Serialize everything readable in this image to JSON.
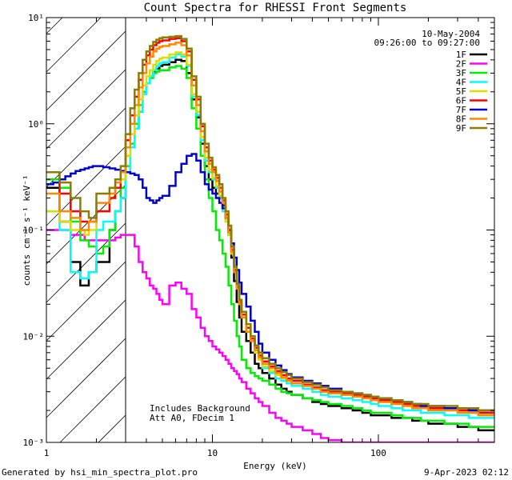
{
  "chart_data": {
    "type": "line",
    "title": "Count Spectra for RHESSI Front Segments",
    "xlabel": "Energy (keV)",
    "ylabel": "counts cm⁻² s⁻¹ keV⁻¹",
    "xscale": "log",
    "yscale": "log",
    "xlim": [
      1,
      500
    ],
    "ylim": [
      0.001,
      10
    ],
    "x_ticks": [
      {
        "value": 1,
        "label": "1"
      },
      {
        "value": 10,
        "label": "10"
      },
      {
        "value": 100,
        "label": "100"
      }
    ],
    "y_ticks": [
      {
        "value": 10,
        "label": "10¹"
      },
      {
        "value": 1,
        "label": "10⁰"
      },
      {
        "value": 0.1,
        "label": "10⁻¹"
      },
      {
        "value": 0.01,
        "label": "10⁻²"
      },
      {
        "value": 0.001,
        "label": "10⁻³"
      }
    ],
    "excluded_region": {
      "from": 1,
      "to": 3
    },
    "date": "10-May-2004",
    "time_range": "09:26:00 to 09:27:00",
    "annotations": [
      "Includes Background",
      "Att A0, FDecim 1"
    ],
    "legend_position": "top-right",
    "x": [
      1.0,
      1.1,
      1.2,
      1.3,
      1.4,
      1.5,
      1.6,
      1.7,
      1.8,
      1.9,
      2.0,
      2.2,
      2.4,
      2.6,
      2.8,
      3.0,
      3.2,
      3.4,
      3.6,
      3.8,
      4.0,
      4.2,
      4.4,
      4.6,
      4.8,
      5.0,
      5.5,
      6.0,
      6.5,
      7.0,
      7.5,
      8.0,
      8.5,
      9.0,
      9.5,
      10.0,
      10.5,
      11.0,
      11.5,
      12.0,
      12.5,
      13.0,
      13.5,
      14.0,
      14.5,
      15.0,
      16.0,
      17.0,
      18.0,
      19.0,
      20.0,
      22.0,
      24.0,
      26.0,
      28.0,
      30.0,
      35.0,
      40.0,
      45.0,
      50.0,
      60.0,
      70.0,
      80.0,
      90.0,
      100.0,
      120.0,
      140.0,
      160.0,
      180.0,
      200.0,
      250.0,
      300.0,
      350.0,
      400.0
    ],
    "series": [
      {
        "name": "1F",
        "color": "#000000",
        "values": [
          0.25,
          0.25,
          0.12,
          0.12,
          0.05,
          0.05,
          0.03,
          0.03,
          0.04,
          0.04,
          0.05,
          0.05,
          0.1,
          0.15,
          0.2,
          0.35,
          0.6,
          0.9,
          1.3,
          1.9,
          2.4,
          2.8,
          3.1,
          3.3,
          3.5,
          3.6,
          3.8,
          4.0,
          3.9,
          3.0,
          1.7,
          1.15,
          0.65,
          0.4,
          0.3,
          0.25,
          0.22,
          0.2,
          0.17,
          0.13,
          0.09,
          0.055,
          0.033,
          0.021,
          0.015,
          0.011,
          0.009,
          0.007,
          0.0055,
          0.005,
          0.0045,
          0.004,
          0.0035,
          0.0032,
          0.003,
          0.0028,
          0.0026,
          0.0024,
          0.0023,
          0.0022,
          0.0021,
          0.002,
          0.0019,
          0.0018,
          0.0018,
          0.0017,
          0.0017,
          0.0016,
          0.0016,
          0.0015,
          0.0015,
          0.0014,
          0.0014,
          0.0013
        ]
      },
      {
        "name": "2F",
        "color": "#ff00ff",
        "values": [
          0.1,
          0.1,
          0.1,
          0.1,
          0.09,
          0.09,
          0.09,
          0.08,
          0.08,
          0.08,
          0.08,
          0.08,
          0.08,
          0.085,
          0.09,
          0.09,
          0.09,
          0.07,
          0.05,
          0.04,
          0.035,
          0.03,
          0.028,
          0.025,
          0.022,
          0.02,
          0.03,
          0.032,
          0.028,
          0.025,
          0.018,
          0.015,
          0.012,
          0.01,
          0.009,
          0.008,
          0.0075,
          0.007,
          0.0065,
          0.006,
          0.0055,
          0.005,
          0.0047,
          0.0044,
          0.004,
          0.0037,
          0.0032,
          0.0029,
          0.0026,
          0.0024,
          0.0022,
          0.0019,
          0.0017,
          0.0016,
          0.0015,
          0.0014,
          0.0013,
          0.0012,
          0.0011,
          0.00105,
          0.001,
          0.001,
          0.001,
          0.001,
          0.001,
          0.001,
          0.001,
          0.001,
          0.001,
          0.001,
          0.001,
          0.001,
          0.001,
          0.001
        ]
      },
      {
        "name": "3F",
        "color": "#00ee00",
        "values": [
          0.3,
          0.3,
          0.25,
          0.25,
          0.12,
          0.12,
          0.08,
          0.08,
          0.07,
          0.07,
          0.06,
          0.07,
          0.1,
          0.15,
          0.25,
          0.4,
          0.65,
          1.0,
          1.5,
          2.0,
          2.4,
          2.7,
          3.0,
          3.1,
          3.2,
          3.2,
          3.4,
          3.5,
          3.3,
          2.7,
          1.4,
          0.9,
          0.5,
          0.3,
          0.2,
          0.15,
          0.1,
          0.08,
          0.06,
          0.045,
          0.03,
          0.02,
          0.014,
          0.01,
          0.008,
          0.006,
          0.005,
          0.0045,
          0.0042,
          0.004,
          0.0038,
          0.0035,
          0.0032,
          0.003,
          0.0029,
          0.0028,
          0.0026,
          0.0025,
          0.0024,
          0.0023,
          0.0022,
          0.0021,
          0.002,
          0.0019,
          0.0019,
          0.0018,
          0.0017,
          0.0017,
          0.0016,
          0.0016,
          0.0015,
          0.0015,
          0.0014,
          0.0014
        ]
      },
      {
        "name": "4F",
        "color": "#00ffff",
        "values": [
          0.15,
          0.15,
          0.1,
          0.1,
          0.04,
          0.04,
          0.035,
          0.035,
          0.04,
          0.04,
          0.1,
          0.12,
          0.12,
          0.15,
          0.2,
          0.35,
          0.6,
          0.9,
          1.3,
          1.9,
          2.4,
          2.8,
          3.2,
          3.5,
          3.7,
          3.8,
          4.2,
          4.5,
          4.3,
          3.5,
          1.8,
          1.2,
          0.7,
          0.45,
          0.35,
          0.3,
          0.25,
          0.2,
          0.15,
          0.12,
          0.09,
          0.06,
          0.04,
          0.03,
          0.022,
          0.017,
          0.012,
          0.009,
          0.007,
          0.006,
          0.005,
          0.0045,
          0.004,
          0.0038,
          0.0036,
          0.0034,
          0.0032,
          0.003,
          0.0028,
          0.0027,
          0.0026,
          0.0025,
          0.0024,
          0.0023,
          0.0022,
          0.0021,
          0.002,
          0.002,
          0.0019,
          0.0019,
          0.0018,
          0.0018,
          0.0017,
          0.0017
        ]
      },
      {
        "name": "5F",
        "color": "#dddd00",
        "values": [
          0.15,
          0.15,
          0.12,
          0.12,
          0.1,
          0.1,
          0.1,
          0.09,
          0.1,
          0.1,
          0.15,
          0.15,
          0.2,
          0.25,
          0.3,
          0.5,
          0.8,
          1.2,
          1.7,
          2.3,
          2.8,
          3.2,
          3.6,
          3.9,
          4.1,
          4.2,
          4.5,
          4.7,
          4.5,
          3.6,
          1.9,
          1.3,
          0.75,
          0.48,
          0.37,
          0.31,
          0.26,
          0.21,
          0.16,
          0.12,
          0.09,
          0.06,
          0.04,
          0.028,
          0.02,
          0.015,
          0.011,
          0.009,
          0.007,
          0.006,
          0.0052,
          0.0047,
          0.0043,
          0.004,
          0.0038,
          0.0036,
          0.0034,
          0.0032,
          0.003,
          0.0029,
          0.0028,
          0.0027,
          0.0026,
          0.0025,
          0.0024,
          0.0023,
          0.0022,
          0.0021,
          0.0021,
          0.002,
          0.002,
          0.0019,
          0.0019,
          0.0018
        ]
      },
      {
        "name": "6F",
        "color": "#ff0000",
        "values": [
          0.35,
          0.35,
          0.22,
          0.22,
          0.15,
          0.15,
          0.12,
          0.12,
          0.12,
          0.12,
          0.15,
          0.15,
          0.2,
          0.25,
          0.35,
          0.7,
          1.2,
          1.8,
          2.6,
          3.6,
          4.4,
          5.0,
          5.5,
          5.8,
          6.0,
          6.1,
          6.3,
          6.4,
          6.0,
          4.8,
          2.6,
          1.7,
          0.95,
          0.6,
          0.45,
          0.37,
          0.31,
          0.25,
          0.19,
          0.14,
          0.1,
          0.065,
          0.042,
          0.029,
          0.021,
          0.016,
          0.012,
          0.0095,
          0.0078,
          0.0066,
          0.0058,
          0.0052,
          0.0047,
          0.0043,
          0.004,
          0.0038,
          0.0035,
          0.0033,
          0.0031,
          0.003,
          0.0029,
          0.0028,
          0.0027,
          0.0026,
          0.0025,
          0.0024,
          0.0023,
          0.0022,
          0.0022,
          0.0021,
          0.0021,
          0.002,
          0.002,
          0.0019
        ]
      },
      {
        "name": "7F",
        "color": "#0000cc",
        "values": [
          0.27,
          0.28,
          0.3,
          0.32,
          0.34,
          0.36,
          0.37,
          0.38,
          0.39,
          0.4,
          0.4,
          0.39,
          0.38,
          0.37,
          0.36,
          0.35,
          0.34,
          0.33,
          0.3,
          0.25,
          0.2,
          0.19,
          0.18,
          0.19,
          0.2,
          0.21,
          0.26,
          0.35,
          0.42,
          0.5,
          0.52,
          0.45,
          0.35,
          0.27,
          0.24,
          0.22,
          0.2,
          0.18,
          0.16,
          0.13,
          0.1,
          0.075,
          0.055,
          0.042,
          0.032,
          0.025,
          0.019,
          0.014,
          0.011,
          0.0085,
          0.007,
          0.006,
          0.0053,
          0.0048,
          0.0044,
          0.0041,
          0.0038,
          0.0036,
          0.0034,
          0.0032,
          0.003,
          0.0029,
          0.0028,
          0.0027,
          0.0026,
          0.0025,
          0.0024,
          0.0023,
          0.0022,
          0.0022,
          0.0021,
          0.0021,
          0.002,
          0.002
        ]
      },
      {
        "name": "8F",
        "color": "#ff8800",
        "values": [
          0.22,
          0.22,
          0.15,
          0.15,
          0.13,
          0.13,
          0.1,
          0.1,
          0.12,
          0.12,
          0.18,
          0.18,
          0.22,
          0.28,
          0.35,
          0.6,
          1.0,
          1.5,
          2.2,
          3.0,
          3.7,
          4.3,
          4.8,
          5.1,
          5.3,
          5.4,
          5.6,
          5.8,
          5.5,
          4.4,
          2.3,
          1.5,
          0.85,
          0.55,
          0.42,
          0.35,
          0.29,
          0.23,
          0.18,
          0.13,
          0.095,
          0.062,
          0.04,
          0.028,
          0.02,
          0.015,
          0.011,
          0.009,
          0.0074,
          0.0063,
          0.0055,
          0.005,
          0.0045,
          0.0041,
          0.0038,
          0.0036,
          0.0034,
          0.0032,
          0.003,
          0.0029,
          0.0028,
          0.0027,
          0.0026,
          0.0025,
          0.0024,
          0.0023,
          0.0022,
          0.0021,
          0.0021,
          0.002,
          0.002,
          0.0019,
          0.0019,
          0.0018
        ]
      },
      {
        "name": "9F",
        "color": "#8b7d00",
        "values": [
          0.35,
          0.35,
          0.28,
          0.28,
          0.2,
          0.2,
          0.15,
          0.15,
          0.13,
          0.13,
          0.22,
          0.22,
          0.25,
          0.3,
          0.4,
          0.8,
          1.4,
          2.1,
          3.0,
          4.0,
          4.8,
          5.4,
          5.9,
          6.2,
          6.4,
          6.5,
          6.6,
          6.7,
          6.3,
          5.1,
          2.8,
          1.8,
          1.0,
          0.65,
          0.48,
          0.39,
          0.33,
          0.27,
          0.2,
          0.15,
          0.11,
          0.07,
          0.045,
          0.031,
          0.022,
          0.017,
          0.013,
          0.01,
          0.0082,
          0.007,
          0.0062,
          0.0055,
          0.005,
          0.0046,
          0.0043,
          0.004,
          0.0037,
          0.0035,
          0.0033,
          0.0031,
          0.003,
          0.0029,
          0.0028,
          0.0027,
          0.0026,
          0.0025,
          0.0024,
          0.0023,
          0.0023,
          0.0022,
          0.0022,
          0.0021,
          0.0021,
          0.002
        ]
      }
    ]
  },
  "footer": {
    "generated_by": "Generated by hsi_min_spectra_plot.pro",
    "timestamp": "9-Apr-2023 02:12"
  }
}
